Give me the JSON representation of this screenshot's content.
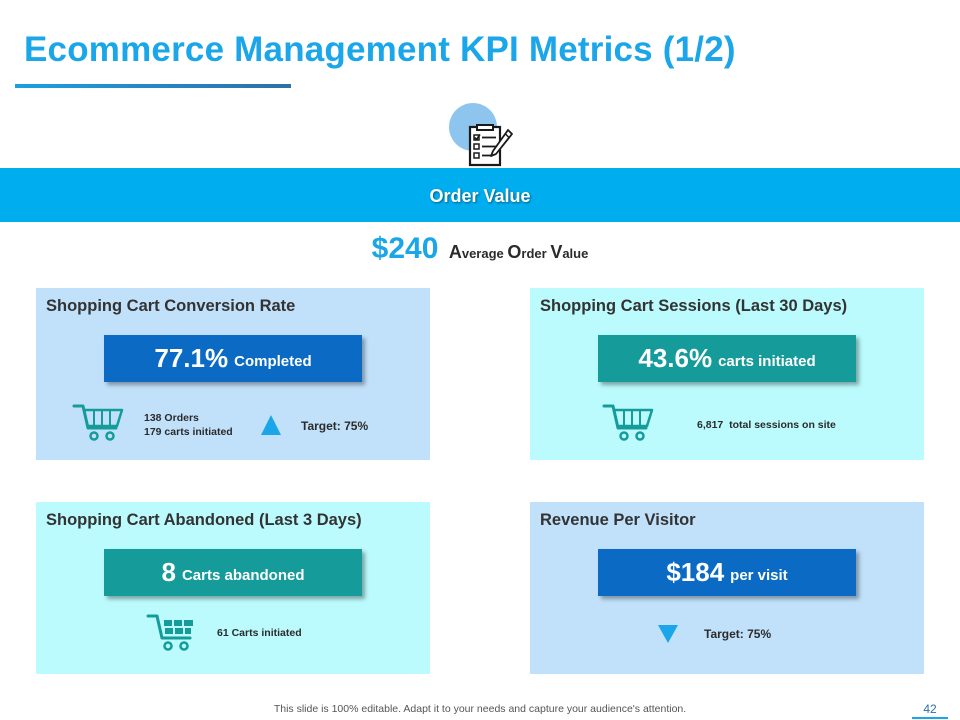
{
  "slide": {
    "title": "Ecommerce Management KPI Metrics (1/2)",
    "banner_label": "Order Value",
    "footer_text": "This slide is 100% editable. Adapt it to your needs and capture your audience's attention.",
    "page_number": "42"
  },
  "average_order": {
    "value": "$240",
    "label_parts": [
      "A",
      "verage ",
      "O",
      "rder ",
      "V",
      "alue"
    ]
  },
  "panels": {
    "conversion": {
      "title": "Shopping Cart Conversion Rate",
      "metric_value": "77.1%",
      "metric_label": "Completed",
      "detail_lines": [
        "138 Orders",
        "179 carts initiated"
      ],
      "target_label": "Target: 75%",
      "trend": "up"
    },
    "sessions": {
      "title": "Shopping Cart Sessions (Last 30 Days)",
      "metric_value": "43.6%",
      "metric_label": "carts initiated",
      "detail": "6,817  total sessions on site"
    },
    "abandoned": {
      "title": "Shopping Cart Abandoned (Last 3 Days)",
      "metric_value": "8",
      "metric_label": "Carts abandoned",
      "detail": "61 Carts initiated"
    },
    "revenue": {
      "title": "Revenue Per Visitor",
      "metric_value": "$184",
      "metric_label": "per visit",
      "target_label": "Target: 75%",
      "trend": "down"
    }
  },
  "icons": {
    "checklist": "checklist-icon",
    "cart": "shopping-cart-icon",
    "up": "triangle-up-icon",
    "down": "triangle-down-icon"
  },
  "colors": {
    "accent": "#1aa6e8",
    "banner": "#00adef",
    "panel_blue": "#c1e1fb",
    "panel_cyan": "#bbfbfd",
    "metric_blue": "#0b6bc4",
    "metric_teal": "#159b9a"
  }
}
